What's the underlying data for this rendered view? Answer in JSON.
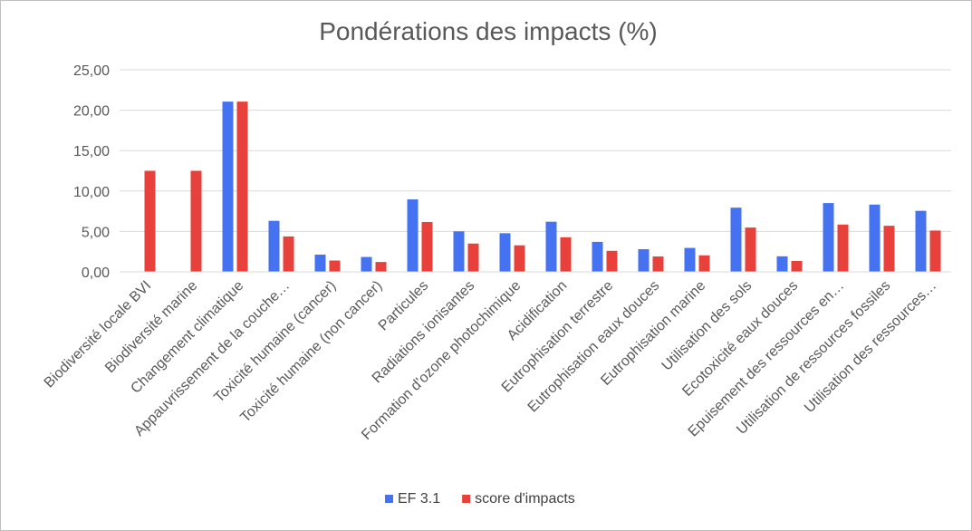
{
  "chart_data": {
    "type": "bar",
    "title": "Pondérations des impacts (%)",
    "xlabel": "",
    "ylabel": "",
    "ylim": [
      0,
      25
    ],
    "yticks": [
      "0,00",
      "5,00",
      "10,00",
      "15,00",
      "20,00",
      "25,00"
    ],
    "grid": true,
    "legend_position": "bottom",
    "categories": [
      "Biodiversité locale BVI",
      "Biodiversité marine",
      "Changement climatique",
      "Appauvrissement de la couche…",
      "Toxicité humaine (cancer)",
      "Toxicité humaine (non cancer)",
      "Particules",
      "Radiations ionisantes",
      "Formation d'ozone photochimique",
      "Acidification",
      "Eutrophisation terrestre",
      "Eutrophisation eaux douces",
      "Eutrophisation marine",
      "Utilisation des sols",
      "Ecotoxicité eaux douces",
      "Epuisement des ressources en…",
      "Utilisation de ressources fossiles",
      "Utilisation des ressources…"
    ],
    "series": [
      {
        "name": "EF 3.1",
        "color": "#4472f0",
        "values": [
          0,
          0,
          21.06,
          6.31,
          2.13,
          1.84,
          8.96,
          5.01,
          4.78,
          6.2,
          3.71,
          2.8,
          2.96,
          7.94,
          1.92,
          8.51,
          8.32,
          7.55
        ]
      },
      {
        "name": "score d'impacts",
        "color": "#e8403a",
        "values": [
          12.5,
          12.5,
          21.06,
          4.38,
          1.4,
          1.22,
          6.17,
          3.5,
          3.28,
          4.28,
          2.6,
          1.9,
          2.04,
          5.48,
          1.35,
          5.85,
          5.7,
          5.11
        ]
      }
    ]
  }
}
